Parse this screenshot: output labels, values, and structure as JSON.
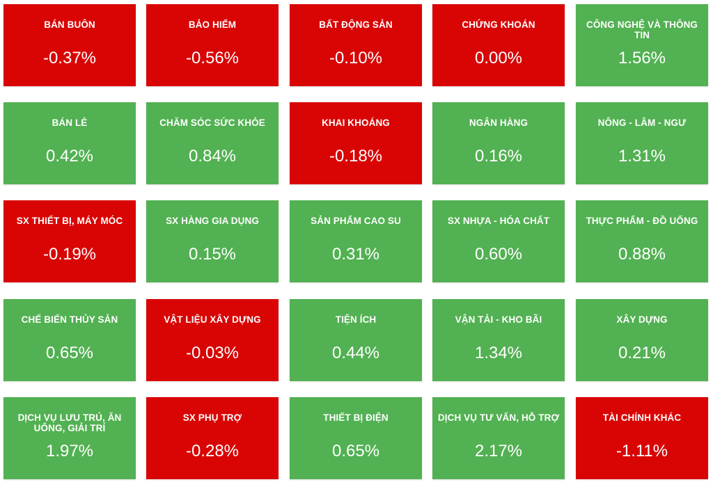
{
  "colors": {
    "up": "#52b152",
    "down": "#d90505"
  },
  "sectors": [
    {
      "name": "BÁN BUÔN",
      "change": "-0.37%",
      "trend": "down"
    },
    {
      "name": "BẢO HIỂM",
      "change": "-0.56%",
      "trend": "down"
    },
    {
      "name": "BẤT ĐỘNG SẢN",
      "change": "-0.10%",
      "trend": "down"
    },
    {
      "name": "CHỨNG KHOÁN",
      "change": "0.00%",
      "trend": "down"
    },
    {
      "name": "CÔNG NGHỆ VÀ THÔNG TIN",
      "change": "1.56%",
      "trend": "up"
    },
    {
      "name": "BÁN LẺ",
      "change": "0.42%",
      "trend": "up"
    },
    {
      "name": "CHĂM SÓC SỨC KHỎE",
      "change": "0.84%",
      "trend": "up"
    },
    {
      "name": "KHAI KHOÁNG",
      "change": "-0.18%",
      "trend": "down"
    },
    {
      "name": "NGÂN HÀNG",
      "change": "0.16%",
      "trend": "up"
    },
    {
      "name": "NÔNG - LÂM - NGƯ",
      "change": "1.31%",
      "trend": "up"
    },
    {
      "name": "SX THIẾT BỊ, MÁY MÓC",
      "change": "-0.19%",
      "trend": "down"
    },
    {
      "name": "SX HÀNG GIA DỤNG",
      "change": "0.15%",
      "trend": "up"
    },
    {
      "name": "SẢN PHẨM CAO SU",
      "change": "0.31%",
      "trend": "up"
    },
    {
      "name": "SX NHỰA - HÓA CHẤT",
      "change": "0.60%",
      "trend": "up"
    },
    {
      "name": "THỰC PHẨM - ĐỒ UỐNG",
      "change": "0.88%",
      "trend": "up"
    },
    {
      "name": "CHẾ BIẾN THỦY SẢN",
      "change": "0.65%",
      "trend": "up"
    },
    {
      "name": "VẬT LIỆU XÂY DỰNG",
      "change": "-0.03%",
      "trend": "down"
    },
    {
      "name": "TIỆN ÍCH",
      "change": "0.44%",
      "trend": "up"
    },
    {
      "name": "VẬN TẢI - KHO BÃI",
      "change": "1.34%",
      "trend": "up"
    },
    {
      "name": "XÂY DỰNG",
      "change": "0.21%",
      "trend": "up"
    },
    {
      "name": "DỊCH VỤ LƯU TRÚ, ĂN UỐNG, GIẢI TRÍ",
      "change": "1.97%",
      "trend": "up"
    },
    {
      "name": "SX PHỤ TRỢ",
      "change": "-0.28%",
      "trend": "down"
    },
    {
      "name": "THIẾT BỊ ĐIỆN",
      "change": "0.65%",
      "trend": "up"
    },
    {
      "name": "DỊCH VỤ TƯ VẤN, HỖ TRỢ",
      "change": "2.17%",
      "trend": "up"
    },
    {
      "name": "TÀI CHÍNH KHÁC",
      "change": "-1.11%",
      "trend": "down"
    }
  ]
}
